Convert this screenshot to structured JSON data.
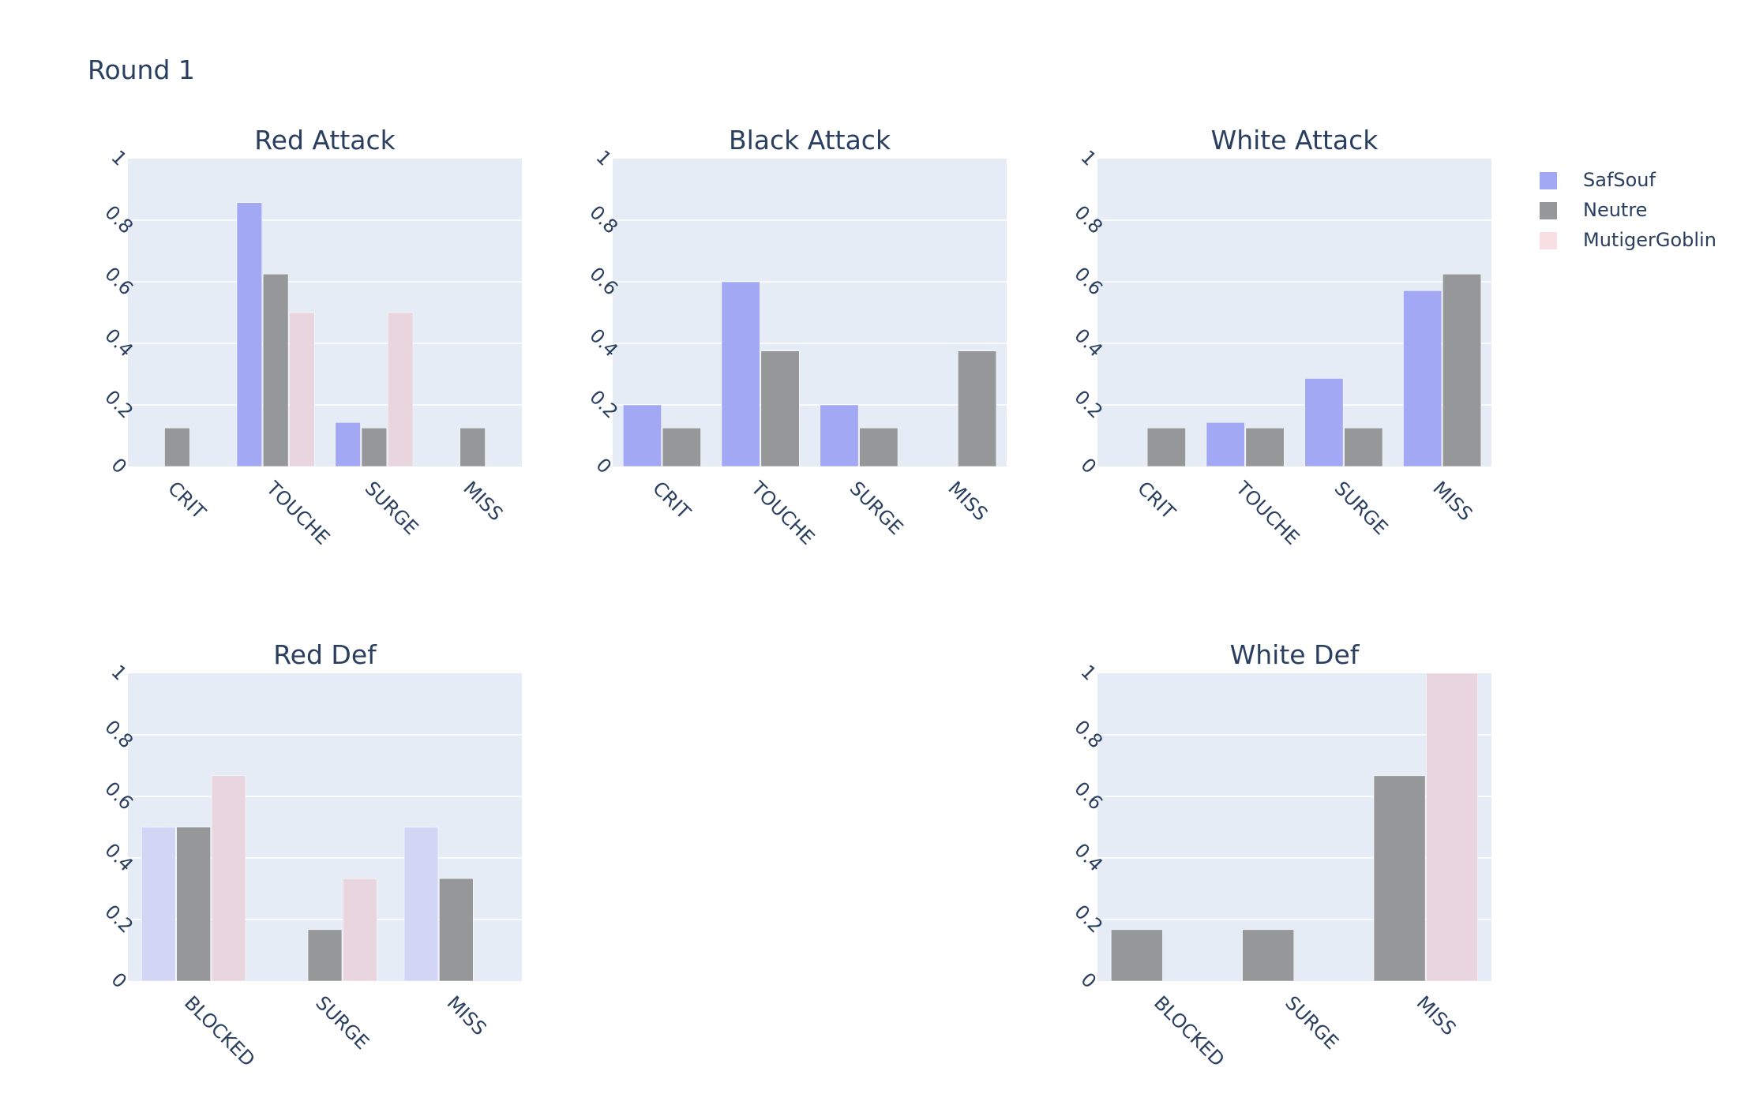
{
  "title": "Round 1",
  "legend": [
    {
      "name": "SafSouf",
      "color": "#a3a8f4"
    },
    {
      "name": "Neutre",
      "color": "#969799"
    },
    {
      "name": "MutigerGoblin",
      "color": "#f7dfe3"
    }
  ],
  "chart_data": [
    {
      "type": "bar",
      "title": "Red Attack",
      "categories": [
        "CRIT",
        "TOUCHE",
        "SURGE",
        "MISS"
      ],
      "ylim": [
        0,
        1
      ],
      "yticks": [
        "0",
        "0.2",
        "0.4",
        "0.6",
        "0.8",
        "1"
      ],
      "series": [
        {
          "name": "SafSouf",
          "values": [
            0,
            0.857,
            0.143,
            0
          ],
          "color": "#a3a8f4"
        },
        {
          "name": "Neutre",
          "values": [
            0.125,
            0.625,
            0.125,
            0.125
          ],
          "color": "#969799"
        },
        {
          "name": "MutigerGoblin",
          "values": [
            0,
            0.5,
            0.5,
            0
          ],
          "color": "#e8d5dd"
        }
      ]
    },
    {
      "type": "bar",
      "title": "Black Attack",
      "categories": [
        "CRIT",
        "TOUCHE",
        "SURGE",
        "MISS"
      ],
      "ylim": [
        0,
        1
      ],
      "yticks": [
        "0",
        "0.2",
        "0.4",
        "0.6",
        "0.8",
        "1"
      ],
      "series": [
        {
          "name": "SafSouf",
          "values": [
            0.2,
            0.6,
            0.2,
            0
          ],
          "color": "#a3a8f4"
        },
        {
          "name": "Neutre",
          "values": [
            0.125,
            0.375,
            0.125,
            0.375
          ],
          "color": "#969799"
        }
      ]
    },
    {
      "type": "bar",
      "title": "White Attack",
      "categories": [
        "CRIT",
        "TOUCHE",
        "SURGE",
        "MISS"
      ],
      "ylim": [
        0,
        1
      ],
      "yticks": [
        "0",
        "0.2",
        "0.4",
        "0.6",
        "0.8",
        "1"
      ],
      "series": [
        {
          "name": "SafSouf",
          "values": [
            0,
            0.143,
            0.286,
            0.571
          ],
          "color": "#a3a8f4"
        },
        {
          "name": "Neutre",
          "values": [
            0.125,
            0.125,
            0.125,
            0.625
          ],
          "color": "#969799"
        }
      ]
    },
    {
      "type": "bar",
      "title": "Red Def",
      "categories": [
        "BLOCKED",
        "SURGE",
        "MISS"
      ],
      "ylim": [
        0,
        1
      ],
      "yticks": [
        "0",
        "0.2",
        "0.4",
        "0.6",
        "0.8",
        "1"
      ],
      "series": [
        {
          "name": "SafSouf",
          "values": [
            0.5,
            0,
            0.5
          ],
          "color": "#d2d6f4"
        },
        {
          "name": "Neutre",
          "values": [
            0.5,
            0.167,
            0.333
          ],
          "color": "#969799"
        },
        {
          "name": "MutigerGoblin",
          "values": [
            0.667,
            0.333,
            0
          ],
          "color": "#e8d5dd"
        }
      ]
    },
    {
      "type": "bar",
      "title": "White Def",
      "categories": [
        "BLOCKED",
        "SURGE",
        "MISS"
      ],
      "ylim": [
        0,
        1
      ],
      "yticks": [
        "0",
        "0.2",
        "0.4",
        "0.6",
        "0.8",
        "1"
      ],
      "series": [
        {
          "name": "Neutre",
          "values": [
            0.167,
            0.167,
            0.667
          ],
          "color": "#969799"
        },
        {
          "name": "MutigerGoblin",
          "values": [
            0,
            0,
            1
          ],
          "color": "#e8d5dd"
        }
      ]
    }
  ]
}
